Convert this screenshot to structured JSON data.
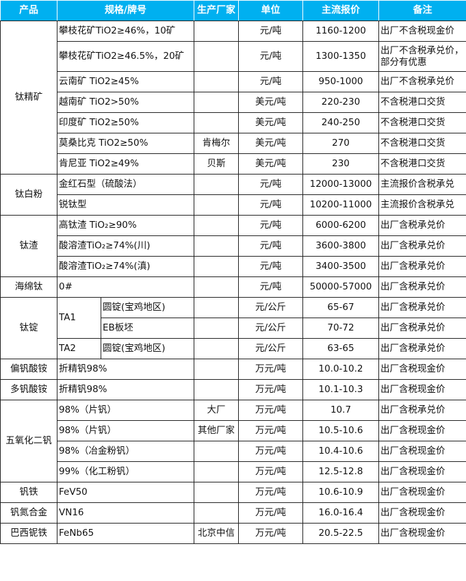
{
  "header": {
    "product": "产品",
    "spec": "规格/牌号",
    "maker": "生产厂家",
    "unit": "单位",
    "price": "主流报价",
    "note": "备注"
  },
  "colors": {
    "header_bg": "#00b0f0",
    "header_text": "#ffffff"
  },
  "groups": [
    {
      "product": "钛精矿",
      "rows": [
        {
          "spec": "攀枝花矿TiO2≥46%，10矿",
          "maker": "",
          "unit": "元/吨",
          "price": "1160-1200",
          "note": "出厂不含税现金价"
        },
        {
          "spec": "攀枝花矿TiO2≥46.5%，20矿",
          "maker": "",
          "unit": "元/吨",
          "price": "1300-1350",
          "note": "出厂不含税承兑价，部分有优惠"
        },
        {
          "spec": "云南矿 TiO2≥45%",
          "maker": "",
          "unit": "元/吨",
          "price": "950-1000",
          "note": "出厂不含税承兑价"
        },
        {
          "spec": "越南矿 TiO2>50%",
          "maker": "",
          "unit": "美元/吨",
          "price": "220-230",
          "note": "不含税港口交货"
        },
        {
          "spec": "印度矿 TiO2≥50%",
          "maker": "",
          "unit": "美元/吨",
          "price": "240-250",
          "note": "不含税港口交货"
        },
        {
          "spec": "莫桑比克 TiO2≥50%",
          "maker": "肯梅尔",
          "unit": "美元/吨",
          "price": "270",
          "note": "不含税港口交货"
        },
        {
          "spec": "肯尼亚 TiO2≥49%",
          "maker": "贝斯",
          "unit": "美元/吨",
          "price": "230",
          "note": "不含税港口交货"
        }
      ]
    },
    {
      "product": "钛白粉",
      "rows": [
        {
          "spec": "金红石型（硫酸法）",
          "maker": "",
          "unit": "元/吨",
          "price": "12000-13000",
          "note": "主流报价含税承兑"
        },
        {
          "spec": "锐钛型",
          "maker": "",
          "unit": "元/吨",
          "price": "10200-11000",
          "note": "主流报价含税承兑"
        }
      ]
    },
    {
      "product": "钛渣",
      "rows": [
        {
          "spec": "高钛渣 TiO₂≥90%",
          "maker": "",
          "unit": "元/吨",
          "price": "6000-6200",
          "note": "出厂含税承兑价"
        },
        {
          "spec": "酸溶渣TiO₂≥74%(川)",
          "maker": "",
          "unit": "元/吨",
          "price": "3600-3800",
          "note": "出厂含税承兑价"
        },
        {
          "spec": "酸溶渣TiO₂≥74%(滇)",
          "maker": "",
          "unit": "元/吨",
          "price": "3400-3500",
          "note": "出厂含税承兑价"
        }
      ]
    },
    {
      "product": "海绵钛",
      "rows": [
        {
          "spec": "0#",
          "maker": "",
          "unit": "元/吨",
          "price": "50000-57000",
          "note": "出厂含税承兑价"
        }
      ]
    },
    {
      "product": "钛锭",
      "rows": [
        {
          "grade": "TA1",
          "spec": "圆锭(宝鸡地区)",
          "maker": "",
          "unit": "元/公斤",
          "price": "65-67",
          "note": "出厂含税承兑价"
        },
        {
          "spec": "EB板坯",
          "maker": "",
          "unit": "元/公斤",
          "price": "70-72",
          "note": "出厂含税承兑价"
        },
        {
          "grade": "TA2",
          "spec": "圆锭(宝鸡地区)",
          "maker": "",
          "unit": "元/公斤",
          "price": "63-65",
          "note": "出厂含税承兑价"
        }
      ]
    },
    {
      "product": "偏钒酸铵",
      "rows": [
        {
          "spec": "折精钒98%",
          "maker": "",
          "unit": "万元/吨",
          "price": "10.0-10.2",
          "note": "出厂含税现金价"
        }
      ]
    },
    {
      "product": "多钒酸铵",
      "rows": [
        {
          "spec": "折精钒98%",
          "maker": "",
          "unit": "万元/吨",
          "price": "10.1-10.3",
          "note": "出厂含税现金价"
        }
      ]
    },
    {
      "product": "五氧化二钒",
      "rows": [
        {
          "spec": "98%（片钒）",
          "maker": "大厂",
          "unit": "万元/吨",
          "price": "10.7",
          "note": "出厂含税承兑价"
        },
        {
          "spec": "98%（片钒）",
          "maker": "其他厂家",
          "unit": "万元/吨",
          "price": "10.5-10.6",
          "note": "出厂含税现金价"
        },
        {
          "spec": "98%（冶金粉钒）",
          "maker": "",
          "unit": "万元/吨",
          "price": "10.4-10.6",
          "note": "出厂含税现金价"
        },
        {
          "spec": "99%（化工粉钒）",
          "maker": "",
          "unit": "万元/吨",
          "price": "12.5-12.8",
          "note": "出厂含税现金价"
        }
      ]
    },
    {
      "product": "钒铁",
      "rows": [
        {
          "spec": "FeV50",
          "maker": "",
          "unit": "万元/吨",
          "price": "10.6-10.9",
          "note": "出厂含税现金价"
        }
      ]
    },
    {
      "product": "钒氮合金",
      "rows": [
        {
          "spec": "VN16",
          "maker": "",
          "unit": "万元/吨",
          "price": "16.0-16.4",
          "note": "出厂含税现金价"
        }
      ]
    },
    {
      "product": "巴西铌铁",
      "rows": [
        {
          "spec": "FeNb65",
          "maker": "北京中信",
          "unit": "万元/吨",
          "price": "20.5-22.5",
          "note": "出厂含税现金价"
        }
      ]
    }
  ]
}
